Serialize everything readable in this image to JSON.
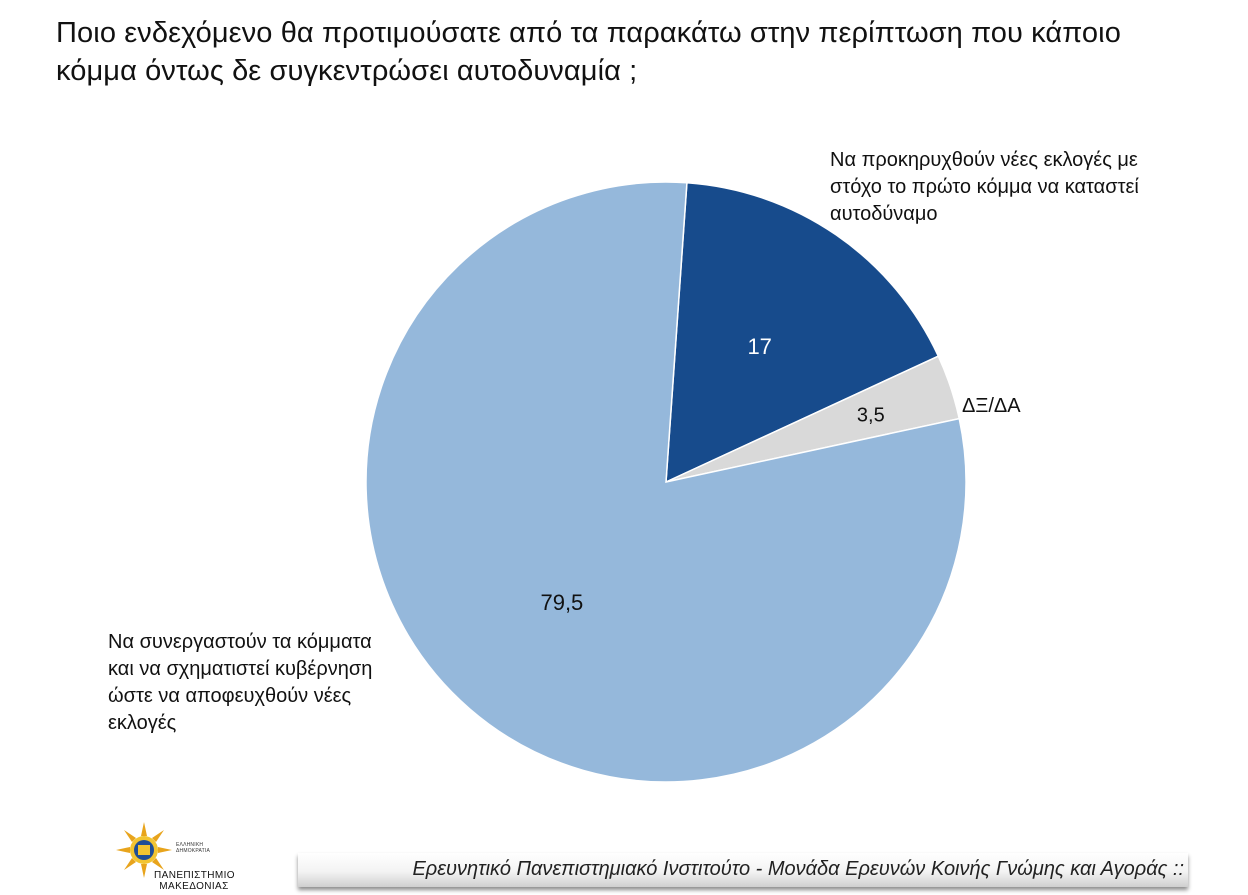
{
  "title": "Ποιο ενδεχόμενο θα προτιμούσατε από τα παρακάτω στην περίπτωση που κάποιο κόμμα όντως δε συγκεντρώσει αυτοδυναμία ;",
  "footer": "Ερευνητικό Πανεπιστημιακό Ινστιτούτο - Μονάδα Ερευνών Κοινής Γνώμης και Αγοράς ::",
  "logo": {
    "name": "ΠΑΝΕΠΙΣΤΗΜΙΟ ΜΑΚΕΔΟΝΙΑΣ",
    "small_text": "ΕΛΛΗΝΙΚΗ ΔΗΜΟΚΡΑΤΙΑ"
  },
  "chart_data": {
    "type": "pie",
    "slices": [
      {
        "label": "Να προκηρυχθούν νέες εκλογές με στόχο το πρώτο κόμμα να καταστεί αυτοδύναμο",
        "value": 17,
        "value_label": "17",
        "color": "#174b8c"
      },
      {
        "label": "ΔΞ/ΔΑ",
        "value": 3.5,
        "value_label": "3,5",
        "color": "#d9d9d9"
      },
      {
        "label": "Να συνεργαστούν τα κόμματα και να σχηματιστεί κυβέρνηση ώστε να αποφευχθούν νέες εκλογές",
        "value": 79.5,
        "value_label": "79,5",
        "color": "#95b8db"
      }
    ],
    "start_angle_deg": 4,
    "direction": "clockwise"
  }
}
